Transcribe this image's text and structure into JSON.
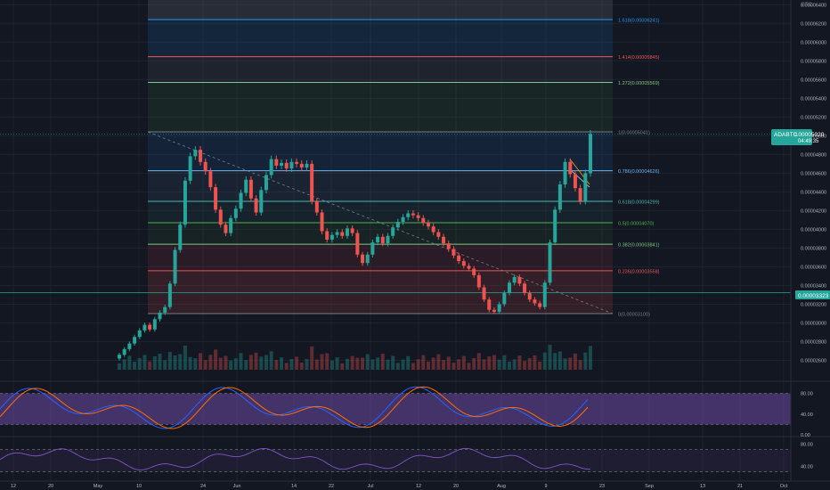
{
  "symbol": "ADABTC",
  "currency": "BTC",
  "price_badge": {
    "price": "0.00005020",
    "countdown": "04:49:35",
    "color": "#26a69a"
  },
  "level_badge": {
    "price": "0.00003323",
    "color": "#26a69a"
  },
  "colors": {
    "background": "#131722",
    "grid": "#1e222d",
    "up": "#26a69a",
    "down": "#ef5350",
    "stoch_k": "#2962ff",
    "stoch_d": "#ff6d00",
    "rsi": "#7e57c2"
  },
  "fib_levels": [
    {
      "label": "1.618(0.00006241)",
      "value": 6.241e-05,
      "color": "#2196f3"
    },
    {
      "label": "1.414(0.00005845)",
      "value": 5.845e-05,
      "color": "#ef5350"
    },
    {
      "label": "1.272(0.00005569)",
      "value": 5.569e-05,
      "color": "#81c784"
    },
    {
      "label": "1(0.00005041)",
      "value": 5.041e-05,
      "color": "#787b86"
    },
    {
      "label": "0.786(0.00004626)",
      "value": 4.626e-05,
      "color": "#64b5f6"
    },
    {
      "label": "0.618(0.00004299)",
      "value": 4.299e-05,
      "color": "#4db6ac"
    },
    {
      "label": "0.5(0.00004070)",
      "value": 4.07e-05,
      "color": "#4caf50"
    },
    {
      "label": "0.382(0.00003841)",
      "value": 3.841e-05,
      "color": "#81c784"
    },
    {
      "label": "0.236(0.00003558)",
      "value": 3.558e-05,
      "color": "#ef5350"
    },
    {
      "label": "0(0.00003100)",
      "value": 3.1e-05,
      "color": "#787b86"
    }
  ],
  "chart_data": {
    "type": "candlestick",
    "title": "",
    "y_ticks": [
      "0.00006400",
      "0.00006200",
      "0.00006000",
      "0.00005800",
      "0.00005600",
      "0.00005400",
      "0.00005200",
      "0.00005000",
      "0.00004800",
      "0.00004600",
      "0.00004400",
      "0.00004200",
      "0.00004000",
      "0.00003800",
      "0.00003600",
      "0.00003400",
      "0.00003200",
      "0.00003000",
      "0.00002800",
      "0.00002600"
    ],
    "y_range": [
      2.5e-05,
      6.45e-05
    ],
    "x_ticks": [
      "12",
      "20",
      "May",
      "10",
      "24",
      "Jun",
      "14",
      "22",
      "Jul",
      "12",
      "20",
      "Aug",
      "9",
      "23",
      "Sep",
      "13",
      "21",
      "Oct"
    ],
    "candles_close_approx": [
      2.66,
      2.72,
      2.78,
      2.85,
      2.92,
      2.98,
      2.93,
      3.04,
      3.11,
      3.17,
      3.42,
      3.78,
      4.05,
      4.52,
      4.78,
      4.85,
      4.72,
      4.62,
      4.45,
      4.21,
      4.05,
      3.96,
      4.12,
      4.22,
      4.39,
      4.53,
      4.33,
      4.18,
      4.42,
      4.58,
      4.75,
      4.68,
      4.71,
      4.65,
      4.72,
      4.7,
      4.66,
      4.7,
      4.3,
      4.18,
      3.98,
      3.89,
      3.94,
      3.97,
      3.93,
      4.01,
      3.96,
      3.73,
      3.64,
      3.73,
      3.86,
      3.92,
      3.85,
      3.93,
      4.02,
      4.08,
      4.13,
      4.17,
      4.15,
      4.12,
      4.07,
      4.03,
      3.97,
      3.92,
      3.85,
      3.79,
      3.72,
      3.66,
      3.61,
      3.58,
      3.51,
      3.38,
      3.25,
      3.14,
      3.12,
      3.2,
      3.32,
      3.43,
      3.49,
      3.42,
      3.32,
      3.25,
      3.21,
      3.17,
      3.43,
      3.86,
      4.21,
      4.48,
      4.72,
      4.59,
      4.44,
      4.3,
      4.6,
      5.02
    ],
    "stoch_rsi": {
      "ylim": [
        0,
        100
      ],
      "ticks": [
        "80.00",
        "40.00",
        "0.00"
      ],
      "band": [
        20,
        80
      ]
    },
    "rsi": {
      "ticks": [
        "80.00",
        "40.00"
      ],
      "band": [
        30,
        70
      ]
    }
  }
}
